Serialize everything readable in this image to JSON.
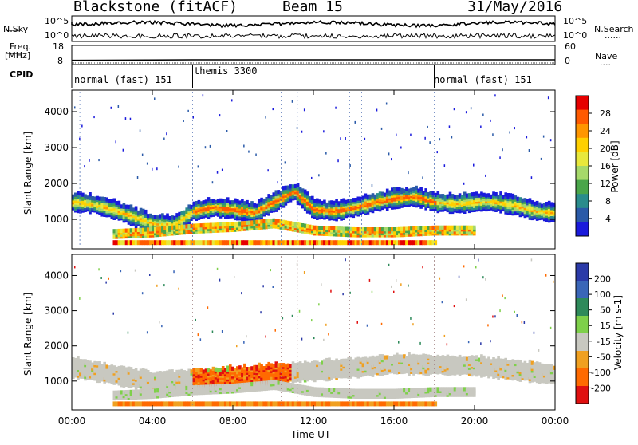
{
  "header": {
    "station": "Blackstone (fitACF)",
    "beam": "Beam 15",
    "date": "31/May/2016"
  },
  "noise_panel": {
    "left_label": "N.Sky",
    "right_label": "N.Search",
    "right_dots": "......",
    "left_ticks": [
      "10^5",
      "10^0"
    ],
    "right_ticks": [
      "10^5",
      "10^0"
    ]
  },
  "freq_panel": {
    "left_label_1": "Freq.",
    "left_label_2": "[MHz]",
    "left_ticks": [
      "18",
      "8"
    ],
    "right_label": "Nave",
    "right_dots": "....",
    "right_ticks": [
      "60",
      "0"
    ]
  },
  "cpid_panel": {
    "label": "CPID",
    "segments": [
      {
        "name": "normal (fast) 151",
        "start_h": 0,
        "end_h": 6
      },
      {
        "name": "themis 3300",
        "start_h": 6,
        "end_h": 18
      },
      {
        "name": "normal (fast) 151",
        "start_h": 18,
        "end_h": 24
      }
    ]
  },
  "power_panel": {
    "ylabel": "Slant Range [km]",
    "cbar_label": "Power [dB]",
    "cbar_ticks": [
      "28",
      "24",
      "20",
      "16",
      "12",
      "8",
      "4"
    ],
    "cbar_colors": [
      "#e60000",
      "#ff5a00",
      "#ff9600",
      "#ffd000",
      "#e8e83c",
      "#a6d96a",
      "#4aa64a",
      "#2a8c8c",
      "#2a5aa8",
      "#1a1adc"
    ]
  },
  "velocity_panel": {
    "ylabel": "Slant Range [km]",
    "cbar_label": "Velocity [m s-1]",
    "cbar_ticks": [
      "200",
      "100",
      "50",
      "15",
      "-15",
      "-50",
      "-100",
      "-200"
    ],
    "cbar_colors": [
      "#2b3aa8",
      "#3a66b8",
      "#2e8a5a",
      "#7ed04a",
      "#c8c8c0",
      "#f0a020",
      "#ff6a00",
      "#e01010"
    ]
  },
  "x_axis": {
    "label": "Time UT",
    "ticks": [
      "00:00",
      "04:00",
      "08:00",
      "12:00",
      "16:00",
      "20:00",
      "00:00"
    ]
  },
  "chart_data": [
    {
      "type": "heatmap",
      "title": "Blackstone (fitACF) Beam 15 31/May/2016",
      "xlabel": "Time UT",
      "ylabel": "Slant Range [km]",
      "xlim_hours": [
        0,
        24
      ],
      "ylim": [
        180,
        4600
      ],
      "yticks": [
        1000,
        2000,
        3000,
        4000
      ],
      "colorbar": "Power [dB]",
      "clim": [
        0,
        30
      ],
      "series": [
        {
          "name": "main echo band (range km)",
          "x": [
            0,
            1,
            2,
            3,
            4,
            5,
            6,
            7,
            8,
            9,
            10,
            11,
            12,
            13,
            14,
            15,
            16,
            17,
            18,
            19,
            20,
            21,
            22,
            23,
            24
          ],
          "y": [
            1500,
            1450,
            1300,
            1100,
            900,
            850,
            1250,
            1350,
            1300,
            1200,
            1500,
            1800,
            1300,
            1250,
            1350,
            1500,
            1600,
            1650,
            1500,
            1450,
            1500,
            1500,
            1400,
            1250,
            1200
          ]
        },
        {
          "name": "lower echo band (range km)",
          "x": [
            2,
            4,
            6,
            8,
            10,
            12,
            14,
            16,
            18,
            20
          ],
          "y": [
            600,
            650,
            750,
            800,
            900,
            700,
            650,
            650,
            700,
            700
          ]
        }
      ]
    },
    {
      "type": "heatmap",
      "title": "",
      "xlabel": "Time UT",
      "ylabel": "Slant Range [km]",
      "xlim_hours": [
        0,
        24
      ],
      "ylim": [
        180,
        4600
      ],
      "yticks": [
        1000,
        2000,
        3000,
        4000
      ],
      "colorbar": "Velocity [m s-1]",
      "clim": [
        -250,
        250
      ],
      "series": [
        {
          "name": "strong negative velocity patch",
          "x": [
            8,
            9,
            10
          ],
          "y": [
            1100,
            1200,
            1400
          ]
        },
        {
          "name": "near-zero ground scatter (range km)",
          "x": [
            0,
            4,
            8,
            12,
            16,
            20,
            24
          ],
          "y": [
            1400,
            1000,
            1150,
            1300,
            1500,
            1450,
            1200
          ]
        }
      ]
    },
    {
      "type": "line",
      "title": "",
      "ylabel": "Freq. [MHz]",
      "ylim": [
        8,
        18
      ],
      "series": [
        {
          "name": "Freq.",
          "x": [
            0,
            6,
            24
          ],
          "y": [
            10.2,
            10.5,
            10.5
          ]
        }
      ]
    }
  ]
}
